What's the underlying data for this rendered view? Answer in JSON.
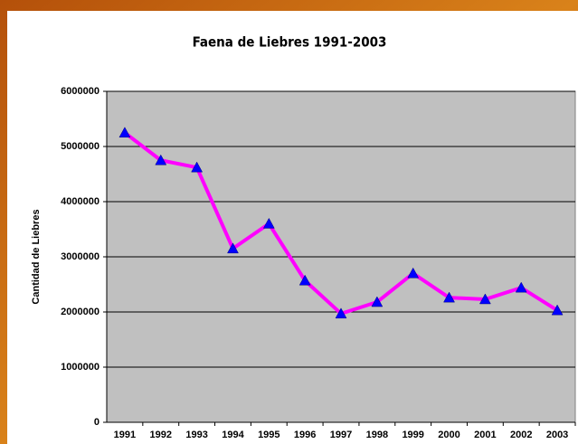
{
  "chart_data": {
    "type": "line",
    "title": "Faena de Liebres 1991-2003",
    "y_label": "Cantidad de Liebres",
    "categories": [
      "1991",
      "1992",
      "1993",
      "1994",
      "1995",
      "1996",
      "1997",
      "1998",
      "1999",
      "2000",
      "2001",
      "2002",
      "2003"
    ],
    "series": [
      {
        "name": "Faena",
        "color": "#ff00ff",
        "marker_color": "#0000ff",
        "values": [
          5250000,
          4750000,
          4620000,
          3150000,
          3600000,
          2570000,
          1970000,
          2180000,
          2700000,
          2260000,
          2230000,
          2440000,
          2030000
        ]
      }
    ],
    "ylim": [
      0,
      6000000
    ],
    "yticks": [
      0,
      1000000,
      2000000,
      3000000,
      4000000,
      5000000,
      6000000
    ],
    "grid": true
  }
}
